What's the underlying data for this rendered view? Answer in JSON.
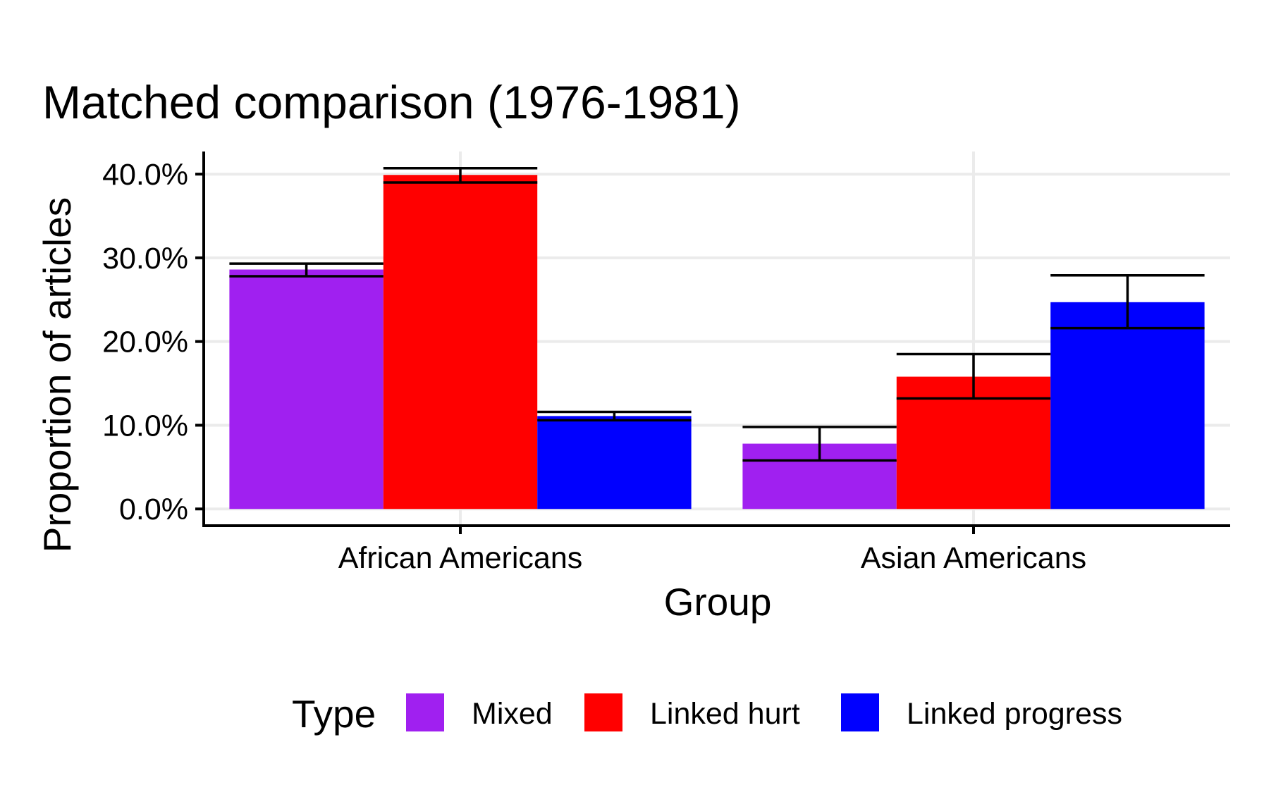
{
  "chart_data": {
    "type": "bar",
    "title": "Matched comparison (1976-1981)",
    "xlabel": "Group",
    "ylabel": "Proportion of articles",
    "categories": [
      "African Americans",
      "Asian Americans"
    ],
    "series": [
      {
        "name": "Mixed",
        "color": "#A020F0",
        "values": [
          28.6,
          7.8
        ],
        "err_low": [
          27.8,
          5.8
        ],
        "err_high": [
          29.3,
          9.8
        ]
      },
      {
        "name": "Linked hurt",
        "color": "#FF0000",
        "values": [
          39.9,
          15.8
        ],
        "err_low": [
          39.0,
          13.2
        ],
        "err_high": [
          40.7,
          18.5
        ]
      },
      {
        "name": "Linked progress",
        "color": "#0000FF",
        "values": [
          11.1,
          24.7
        ],
        "err_low": [
          10.6,
          21.6
        ],
        "err_high": [
          11.6,
          27.9
        ]
      }
    ],
    "y_ticks": [
      0,
      10,
      20,
      30,
      40
    ],
    "y_tick_labels": [
      "0.0%",
      "10.0%",
      "20.0%",
      "30.0%",
      "40.0%"
    ],
    "ylim": [
      -2,
      42.7
    ],
    "grid": true,
    "legend": {
      "title": "Type",
      "position": "bottom"
    }
  }
}
